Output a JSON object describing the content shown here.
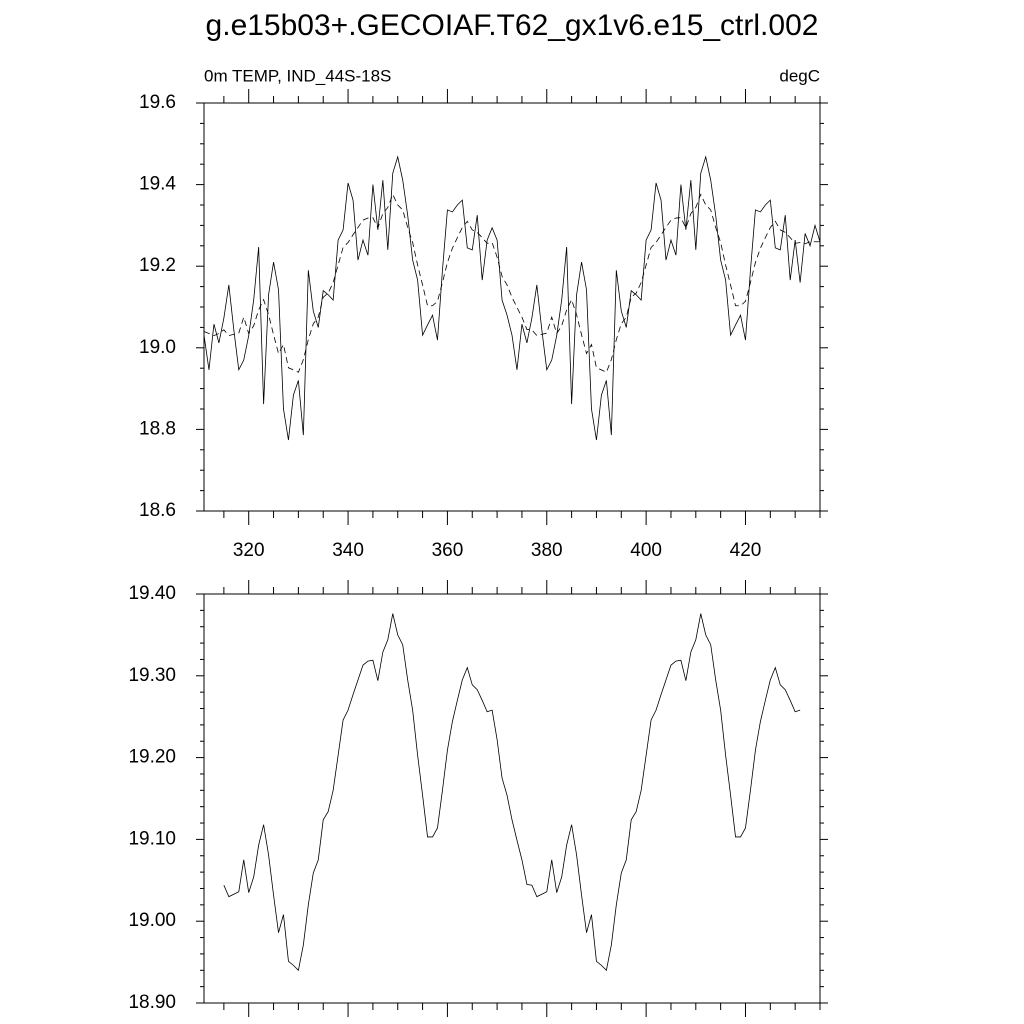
{
  "title": "g.e15b03+.GECOIAF.T62_gx1v6.e15_ctrl.002",
  "chart_data": [
    {
      "type": "line",
      "left_label": "0m TEMP, IND_44S-18S",
      "right_label": "degC",
      "xlim": [
        311,
        435
      ],
      "xticks": [
        320,
        340,
        360,
        380,
        400,
        420
      ],
      "ylim": [
        18.6,
        19.6
      ],
      "yticks": [
        18.6,
        18.8,
        {
          "value": 19,
          "label": "19.0"
        },
        19.2,
        19.4,
        19.6
      ],
      "series": [
        {
          "color": "#000000",
          "dashed": false,
          "x": [
            311,
            312,
            313,
            314,
            315,
            316,
            317,
            318,
            319,
            320,
            321,
            322,
            323,
            324,
            325,
            326,
            327,
            328,
            329,
            330,
            331,
            332,
            333,
            334,
            335,
            336,
            337,
            338,
            339,
            340,
            341,
            342,
            343,
            344,
            345,
            346,
            347,
            348,
            349,
            350,
            351,
            352,
            353,
            354,
            355,
            356,
            357,
            358,
            359,
            360,
            361,
            362,
            363,
            364,
            365,
            366,
            367,
            368,
            369,
            370,
            371,
            372,
            373,
            374,
            375,
            376,
            377,
            378,
            379,
            380,
            381,
            382,
            383,
            384,
            385,
            386,
            387,
            388,
            389,
            390,
            391,
            392,
            393,
            394,
            395,
            396,
            397,
            398,
            399,
            400,
            401,
            402,
            403,
            404,
            405,
            406,
            407,
            408,
            409,
            410,
            411,
            412,
            413,
            414,
            415,
            416,
            417,
            418,
            419,
            420,
            421,
            422,
            423,
            424,
            425,
            426,
            427,
            428,
            429,
            430,
            431,
            432,
            433,
            434,
            435
          ],
          "values": [
            19.031,
            18.946,
            19.058,
            19.012,
            19.073,
            19.154,
            19.044,
            18.946,
            18.97,
            19.03,
            19.117,
            19.247,
            18.862,
            19.13,
            19.21,
            19.142,
            18.85,
            18.774,
            18.884,
            18.92,
            18.786,
            19.19,
            19.09,
            19.05,
            19.14,
            19.13,
            19.117,
            19.264,
            19.289,
            19.404,
            19.362,
            19.215,
            19.264,
            19.227,
            19.4,
            19.289,
            19.411,
            19.24,
            19.428,
            19.468,
            19.411,
            19.325,
            19.215,
            19.166,
            19.031,
            19.056,
            19.08,
            19.019,
            19.19,
            19.338,
            19.333,
            19.35,
            19.362,
            19.245,
            19.24,
            19.325,
            19.166,
            19.264,
            19.294,
            19.264,
            19.117,
            19.08,
            19.031,
            18.946,
            19.058,
            19.012,
            19.073,
            19.154,
            19.044,
            18.946,
            18.97,
            19.03,
            19.117,
            19.247,
            18.862,
            19.13,
            19.21,
            19.142,
            18.85,
            18.774,
            18.884,
            18.92,
            18.786,
            19.19,
            19.09,
            19.05,
            19.14,
            19.13,
            19.117,
            19.264,
            19.289,
            19.404,
            19.362,
            19.215,
            19.264,
            19.227,
            19.4,
            19.289,
            19.411,
            19.24,
            19.428,
            19.468,
            19.411,
            19.325,
            19.215,
            19.166,
            19.031,
            19.056,
            19.08,
            19.019,
            19.19,
            19.338,
            19.333,
            19.35,
            19.362,
            19.245,
            19.24,
            19.325,
            19.166,
            19.264,
            19.16,
            19.28,
            19.25,
            19.3,
            19.26
          ]
        },
        {
          "color": "#000000",
          "dashed": true,
          "x": [
            311,
            312,
            313,
            314,
            315,
            316,
            317,
            318,
            319,
            320,
            321,
            322,
            323,
            324,
            325,
            326,
            327,
            328,
            329,
            330,
            331,
            332,
            333,
            334,
            335,
            336,
            337,
            338,
            339,
            340,
            341,
            342,
            343,
            344,
            345,
            346,
            347,
            348,
            349,
            350,
            351,
            352,
            353,
            354,
            355,
            356,
            357,
            358,
            359,
            360,
            361,
            362,
            363,
            364,
            365,
            366,
            367,
            368,
            369,
            370,
            371,
            372,
            373,
            374,
            375,
            376,
            377,
            378,
            379,
            380,
            381,
            382,
            383,
            384,
            385,
            386,
            387,
            388,
            389,
            390,
            391,
            392,
            393,
            394,
            395,
            396,
            397,
            398,
            399,
            400,
            401,
            402,
            403,
            404,
            405,
            406,
            407,
            408,
            409,
            410,
            411,
            412,
            413,
            414,
            415,
            416,
            417,
            418,
            419,
            420,
            421,
            422,
            423,
            424,
            425,
            426,
            427,
            428,
            429,
            430,
            431,
            432,
            433,
            434,
            435
          ],
          "values": [
            19.04,
            19.035,
            19.03,
            19.035,
            19.044,
            19.03,
            19.033,
            19.036,
            19.075,
            19.035,
            19.054,
            19.093,
            19.118,
            19.081,
            19.032,
            18.986,
            19.008,
            18.951,
            18.946,
            18.94,
            18.971,
            19.02,
            19.059,
            19.075,
            19.124,
            19.134,
            19.16,
            19.203,
            19.246,
            19.258,
            19.277,
            19.295,
            19.313,
            19.318,
            19.319,
            19.294,
            19.329,
            19.344,
            19.376,
            19.35,
            19.338,
            19.295,
            19.258,
            19.203,
            19.154,
            19.103,
            19.103,
            19.114,
            19.16,
            19.209,
            19.244,
            19.27,
            19.295,
            19.31,
            19.289,
            19.283,
            19.27,
            19.256,
            19.258,
            19.222,
            19.175,
            19.154,
            19.124,
            19.099,
            19.075,
            19.045,
            19.044,
            19.03,
            19.033,
            19.036,
            19.075,
            19.035,
            19.054,
            19.093,
            19.118,
            19.081,
            19.032,
            18.986,
            19.008,
            18.951,
            18.946,
            18.94,
            18.971,
            19.02,
            19.059,
            19.075,
            19.124,
            19.134,
            19.16,
            19.203,
            19.246,
            19.258,
            19.277,
            19.295,
            19.313,
            19.318,
            19.319,
            19.294,
            19.329,
            19.344,
            19.376,
            19.35,
            19.338,
            19.295,
            19.258,
            19.203,
            19.154,
            19.103,
            19.103,
            19.114,
            19.16,
            19.209,
            19.244,
            19.27,
            19.295,
            19.31,
            19.289,
            19.283,
            19.27,
            19.256,
            19.258,
            19.255,
            19.26,
            19.26,
            19.26
          ]
        }
      ]
    },
    {
      "type": "line",
      "xlim": [
        311,
        435
      ],
      "ylim": [
        18.9,
        19.4
      ],
      "yticks": [
        {
          "value": 18.9,
          "label": "18.90"
        },
        {
          "value": 19,
          "label": "19.00"
        },
        {
          "value": 19.1,
          "label": "19.10"
        },
        {
          "value": 19.2,
          "label": "19.20"
        },
        {
          "value": 19.3,
          "label": "19.30"
        },
        {
          "value": 19.4,
          "label": "19.40"
        }
      ],
      "series": [
        {
          "color": "#000000",
          "dashed": false,
          "x": [
            315,
            316,
            317,
            318,
            319,
            320,
            321,
            322,
            323,
            324,
            325,
            326,
            327,
            328,
            329,
            330,
            331,
            332,
            333,
            334,
            335,
            336,
            337,
            338,
            339,
            340,
            341,
            342,
            343,
            344,
            345,
            346,
            347,
            348,
            349,
            350,
            351,
            352,
            353,
            354,
            355,
            356,
            357,
            358,
            359,
            360,
            361,
            362,
            363,
            364,
            365,
            366,
            367,
            368,
            369,
            370,
            371,
            372,
            373,
            374,
            375,
            376,
            377,
            378,
            379,
            380,
            381,
            382,
            383,
            384,
            385,
            386,
            387,
            388,
            389,
            390,
            391,
            392,
            393,
            394,
            395,
            396,
            397,
            398,
            399,
            400,
            401,
            402,
            403,
            404,
            405,
            406,
            407,
            408,
            409,
            410,
            411,
            412,
            413,
            414,
            415,
            416,
            417,
            418,
            419,
            420,
            421,
            422,
            423,
            424,
            425,
            426,
            427,
            428,
            429,
            430,
            431
          ],
          "values": [
            19.044,
            19.03,
            19.033,
            19.036,
            19.075,
            19.035,
            19.054,
            19.093,
            19.118,
            19.081,
            19.032,
            18.986,
            19.008,
            18.951,
            18.946,
            18.94,
            18.971,
            19.02,
            19.059,
            19.075,
            19.124,
            19.134,
            19.16,
            19.203,
            19.246,
            19.258,
            19.277,
            19.295,
            19.313,
            19.318,
            19.319,
            19.294,
            19.329,
            19.344,
            19.376,
            19.35,
            19.338,
            19.295,
            19.258,
            19.203,
            19.154,
            19.103,
            19.103,
            19.114,
            19.16,
            19.209,
            19.244,
            19.27,
            19.295,
            19.31,
            19.289,
            19.283,
            19.27,
            19.256,
            19.258,
            19.222,
            19.175,
            19.154,
            19.124,
            19.099,
            19.075,
            19.045,
            19.044,
            19.03,
            19.033,
            19.036,
            19.075,
            19.035,
            19.054,
            19.093,
            19.118,
            19.081,
            19.032,
            18.986,
            19.008,
            18.951,
            18.946,
            18.94,
            18.971,
            19.02,
            19.059,
            19.075,
            19.124,
            19.134,
            19.16,
            19.203,
            19.246,
            19.258,
            19.277,
            19.295,
            19.313,
            19.318,
            19.319,
            19.294,
            19.329,
            19.344,
            19.376,
            19.35,
            19.338,
            19.295,
            19.258,
            19.203,
            19.154,
            19.103,
            19.103,
            19.114,
            19.16,
            19.209,
            19.244,
            19.27,
            19.295,
            19.31,
            19.289,
            19.283,
            19.27,
            19.256,
            19.258
          ]
        }
      ]
    }
  ]
}
